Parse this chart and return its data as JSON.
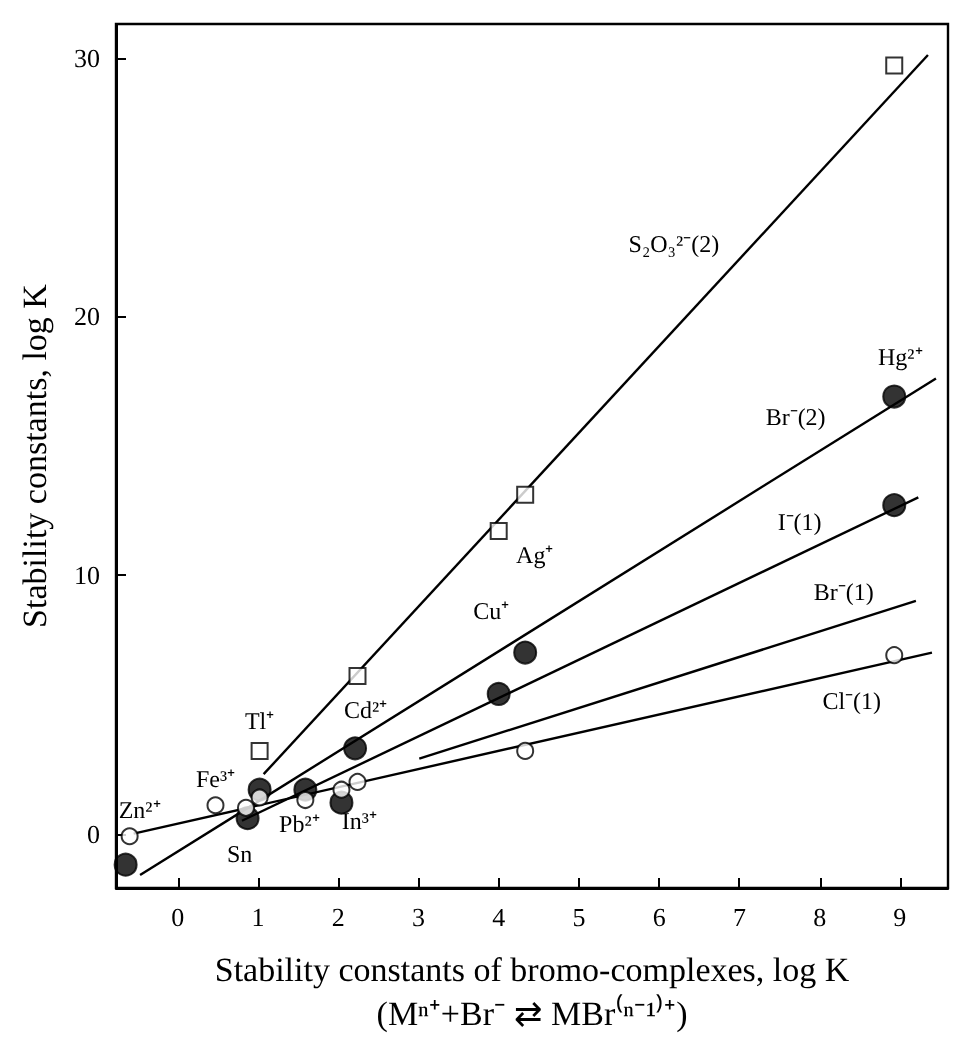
{
  "chart_data": {
    "type": "scatter",
    "xlabel": "Stability constants of bromo-complexes, log K\n(Mⁿ⁺+Br⁻ ⇄ MBr⁽ⁿ⁻¹⁾⁺)",
    "ylabel": "Stability constants, log K",
    "xlim": [
      -0.77,
      9.6
    ],
    "ylim": [
      -2.1,
      31.3
    ],
    "xticks": [
      0,
      1,
      2,
      3,
      4,
      5,
      6,
      7,
      8,
      9
    ],
    "yticks": [
      0,
      10,
      20,
      30
    ],
    "grid": false,
    "series": [
      {
        "marker": "square",
        "color": "#ffffff",
        "x": [
          1.02,
          2.24,
          4.0,
          4.33,
          8.93
        ],
        "values": [
          3.2,
          6.1,
          11.7,
          13.1,
          29.7
        ]
      },
      {
        "marker": "circle",
        "color": "#000000",
        "x": [
          -0.65,
          0.87,
          1.02,
          1.59,
          2.04,
          2.21,
          4.0,
          4.33,
          8.93,
          8.93
        ],
        "values": [
          -1.2,
          0.6,
          1.7,
          1.7,
          1.2,
          3.3,
          5.4,
          7.0,
          12.7,
          16.9
        ]
      },
      {
        "marker": "circle",
        "color": "#ffffff",
        "x": [
          -0.6,
          0.47,
          0.85,
          1.02,
          1.59,
          2.04,
          2.24,
          4.33,
          8.93
        ],
        "values": [
          -0.1,
          1.1,
          1.0,
          1.4,
          1.3,
          1.7,
          2.0,
          3.2,
          6.9
        ]
      },
      {
        "type": "line",
        "marker": "none",
        "color": "#000000",
        "x": [
          1.07,
          9.35
        ],
        "values": [
          2.3,
          30.1
        ]
      },
      {
        "type": "line",
        "marker": "none",
        "color": "#000000",
        "x": [
          -0.47,
          9.45
        ],
        "values": [
          -1.6,
          17.6
        ]
      },
      {
        "type": "line",
        "marker": "none",
        "color": "#000000",
        "x": [
          0.8,
          9.23
        ],
        "values": [
          0.5,
          13.0
        ]
      },
      {
        "type": "line",
        "marker": "none",
        "color": "#000000",
        "x": [
          3.01,
          9.2
        ],
        "values": [
          2.9,
          9.0
        ]
      },
      {
        "type": "line",
        "marker": "none",
        "color": "#000000",
        "x": [
          -0.55,
          9.4
        ],
        "values": [
          0.0,
          7.0
        ]
      }
    ],
    "annotations": [
      {
        "text": "S₂O₃²⁻(2)",
        "x": 7.18,
        "y": 22.8
      },
      {
        "text": "Hg²⁺",
        "x": 8.93,
        "y": 16.9
      },
      {
        "text": "Br⁻(2)",
        "x": 8.0,
        "y": 14.8
      },
      {
        "text": "Ag⁺",
        "x": 4.0,
        "y": 11.7
      },
      {
        "text": "Cu⁺",
        "x": 4.33,
        "y": 7.0
      },
      {
        "text": "I⁻(1)",
        "x": 8.0,
        "y": 11.2
      },
      {
        "text": "Br⁻(1)",
        "x": 8.3,
        "y": 8.1
      },
      {
        "text": "Cl⁻(1)",
        "x": 8.4,
        "y": 6.3
      },
      {
        "text": "Tl⁺",
        "x": 1.02,
        "y": 3.2
      },
      {
        "text": "Cd²⁺",
        "x": 2.24,
        "y": 6.1
      },
      {
        "text": "Fe³⁺",
        "x": 0.47,
        "y": 1.1
      },
      {
        "text": "Zn²⁺",
        "x": -0.6,
        "y": -0.1
      },
      {
        "text": "Sn",
        "x": 0.87,
        "y": 0.6
      },
      {
        "text": "Pb²⁺",
        "x": 1.59,
        "y": 1.3
      },
      {
        "text": "In³⁺",
        "x": 2.04,
        "y": 1.2
      }
    ]
  }
}
